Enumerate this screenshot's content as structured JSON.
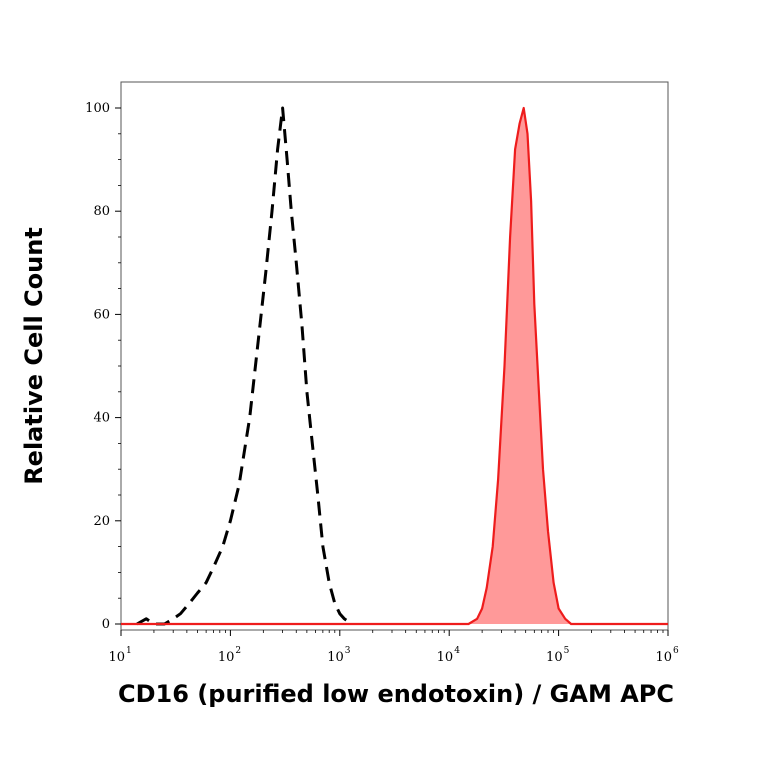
{
  "chart_data": {
    "type": "area",
    "title": "",
    "xlabel": "CD16 (purified low endotoxin) / GAM APC",
    "ylabel": "Relative Cell Count",
    "x_scale": "log",
    "xlim": [
      10,
      1000000
    ],
    "ylim": [
      0,
      103
    ],
    "x_ticks": [
      {
        "base": "10",
        "exp": "1",
        "value": 10
      },
      {
        "base": "10",
        "exp": "2",
        "value": 100
      },
      {
        "base": "10",
        "exp": "3",
        "value": 1000
      },
      {
        "base": "10",
        "exp": "4",
        "value": 10000
      },
      {
        "base": "10",
        "exp": "5",
        "value": 100000
      },
      {
        "base": "10",
        "exp": "6",
        "value": 1000000
      }
    ],
    "y_ticks": [
      {
        "label": "0",
        "value": 0
      },
      {
        "label": "20",
        "value": 20
      },
      {
        "label": "40",
        "value": 40
      },
      {
        "label": "60",
        "value": 60
      },
      {
        "label": "80",
        "value": 80
      },
      {
        "label": "100",
        "value": 100
      }
    ],
    "grid": false,
    "legend": "none",
    "series": [
      {
        "style": "dashed-line",
        "color": "#000000",
        "x": [
          14,
          17,
          20,
          25,
          30,
          35,
          42,
          50,
          60,
          70,
          85,
          100,
          120,
          150,
          180,
          210,
          240,
          270,
          300,
          330,
          360,
          400,
          450,
          500,
          560,
          630,
          700,
          800,
          900,
          1000,
          1100,
          1300
        ],
        "y": [
          0,
          1,
          0,
          0,
          1,
          2,
          4,
          6,
          8,
          11,
          15,
          20,
          27,
          40,
          55,
          68,
          80,
          92,
          100,
          90,
          80,
          70,
          58,
          45,
          35,
          25,
          15,
          8,
          4,
          2,
          1,
          0
        ]
      },
      {
        "style": "filled",
        "color": "#ee1c1c",
        "fill": "#ff9999",
        "x": [
          10,
          15000,
          18000,
          20000,
          22000,
          25000,
          28000,
          32000,
          36000,
          40000,
          44000,
          48000,
          52000,
          56000,
          60000,
          66000,
          72000,
          80000,
          90000,
          100000,
          115000,
          130000,
          1000000
        ],
        "y": [
          0,
          0,
          1,
          3,
          7,
          15,
          28,
          50,
          75,
          92,
          97,
          100,
          95,
          82,
          62,
          45,
          30,
          18,
          8,
          3,
          1,
          0,
          0
        ]
      }
    ]
  }
}
